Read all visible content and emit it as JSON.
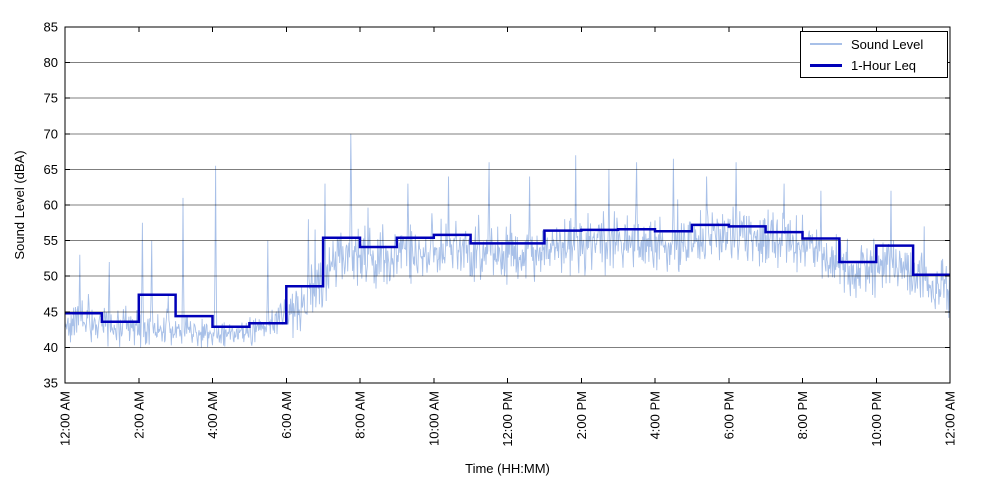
{
  "chart_data": {
    "type": "line",
    "xlabel": "Time (HH:MM)",
    "ylabel": "Sound Level (dBA)",
    "x_axis": {
      "unit": "hours",
      "range": [
        0,
        24
      ],
      "tick_interval_hours": 2,
      "tick_label_rotation_deg": 90,
      "tick_labels": [
        "12:00 AM",
        "2:00 AM",
        "4:00 AM",
        "6:00 AM",
        "8:00 AM",
        "10:00 AM",
        "12:00 PM",
        "2:00 PM",
        "4:00 PM",
        "6:00 PM",
        "8:00 PM",
        "10:00 PM",
        "12:00 AM"
      ]
    },
    "y_axis": {
      "range": [
        35,
        85
      ],
      "ticks": [
        35,
        40,
        45,
        50,
        55,
        60,
        65,
        70,
        75,
        80,
        85
      ]
    },
    "grid": {
      "horizontal": true,
      "vertical": false,
      "color": "#000000",
      "alpha": 0.5
    },
    "axis_color": "#000000",
    "background": "#ffffff",
    "legend": {
      "position": "top-right",
      "entries": [
        {
          "label": "Sound Level",
          "color": "#a8c0e8",
          "line_width": 1
        },
        {
          "label": "1-Hour Leq",
          "color": "#0000b8",
          "line_width": 3
        }
      ]
    },
    "series": [
      {
        "name": "Sound Level",
        "style": "noisy-minute-samples",
        "color": "#a8c0e8",
        "samples_per_hour": 60,
        "seed": 42,
        "spike_chance": 0.035,
        "hourly_mean": [
          43.5,
          42.8,
          42.5,
          42.0,
          41.8,
          42.8,
          46.5,
          53.5,
          52.5,
          53.5,
          54.0,
          53.0,
          53.0,
          54.5,
          54.5,
          54.8,
          54.5,
          55.5,
          55.5,
          54.8,
          53.8,
          50.5,
          52.0,
          48.0
        ],
        "hourly_spread": [
          2.8,
          2.6,
          2.6,
          2.2,
          1.6,
          2.0,
          3.6,
          4.2,
          4.0,
          3.8,
          3.8,
          3.8,
          3.8,
          3.8,
          3.8,
          3.8,
          3.8,
          3.6,
          3.8,
          3.8,
          3.8,
          3.6,
          3.6,
          3.6
        ],
        "hourly_spike_amp": [
          7,
          7,
          11,
          13,
          17,
          9,
          11,
          13,
          9,
          9,
          9,
          10,
          9,
          10,
          11,
          10,
          10,
          9,
          10,
          8,
          7,
          8,
          8,
          7
        ],
        "notable_spikes": [
          {
            "t": 0.4,
            "v": 53
          },
          {
            "t": 1.2,
            "v": 52
          },
          {
            "t": 2.1,
            "v": 57.5
          },
          {
            "t": 2.35,
            "v": 55
          },
          {
            "t": 3.2,
            "v": 61
          },
          {
            "t": 4.08,
            "v": 65.5
          },
          {
            "t": 5.5,
            "v": 55
          },
          {
            "t": 6.6,
            "v": 58
          },
          {
            "t": 7.05,
            "v": 63
          },
          {
            "t": 7.75,
            "v": 70
          },
          {
            "t": 9.3,
            "v": 63
          },
          {
            "t": 10.4,
            "v": 64
          },
          {
            "t": 11.5,
            "v": 66
          },
          {
            "t": 12.6,
            "v": 64
          },
          {
            "t": 13.85,
            "v": 67
          },
          {
            "t": 14.75,
            "v": 65
          },
          {
            "t": 15.5,
            "v": 66
          },
          {
            "t": 16.5,
            "v": 66.5
          },
          {
            "t": 17.4,
            "v": 64
          },
          {
            "t": 18.2,
            "v": 66
          },
          {
            "t": 19.5,
            "v": 63
          },
          {
            "t": 20.5,
            "v": 62
          },
          {
            "t": 22.4,
            "v": 62
          },
          {
            "t": 23.3,
            "v": 57
          }
        ]
      },
      {
        "name": "1-Hour Leq",
        "style": "step",
        "color": "#0000b8",
        "line_width": 2.5,
        "hourly_values": [
          44.8,
          43.6,
          47.4,
          44.4,
          42.9,
          43.4,
          48.6,
          55.4,
          54.1,
          55.4,
          55.8,
          54.6,
          54.6,
          56.4,
          56.5,
          56.6,
          56.3,
          57.2,
          57.0,
          56.2,
          55.3,
          52.0,
          54.3,
          50.2
        ]
      }
    ]
  }
}
